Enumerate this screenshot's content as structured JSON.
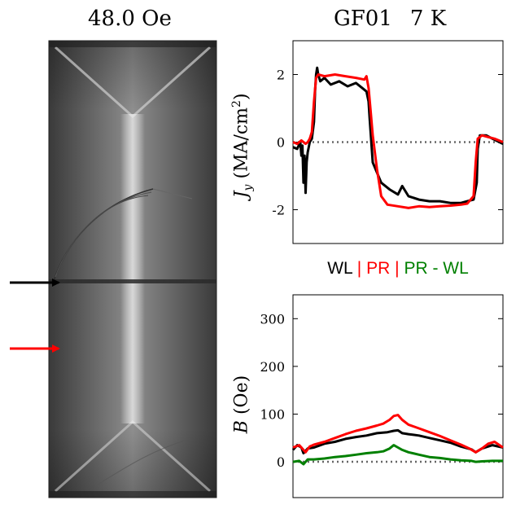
{
  "image_panel": {
    "title": "48.0 Oe",
    "description_icons": [
      "arrow-right-icon",
      "arrow-right-icon"
    ],
    "arrow_colors": [
      "#000000",
      "#ff0000"
    ]
  },
  "header": {
    "sample": "GF01",
    "temperature": "7 K"
  },
  "legend": {
    "wl": "WL",
    "sep": "|",
    "pr": "PR",
    "diff": "PR - WL",
    "colors": {
      "wl": "#000000",
      "pr": "#ff0000",
      "diff": "#008000"
    }
  },
  "chart_data": [
    {
      "type": "line",
      "title": "",
      "ylabel_symbol": "J",
      "ylabel_sub": "y",
      "ylabel_unit": "(MA/cm",
      "ylabel_sup": "2",
      "ylabel_close": ")",
      "xlabel": "",
      "xlim": [
        0,
        1
      ],
      "ylim": [
        -3,
        3
      ],
      "yticks": [
        2,
        0,
        -2
      ],
      "ytick_labels": [
        "2",
        "0",
        "-2"
      ],
      "reference_line": 0,
      "series": [
        {
          "name": "WL",
          "color": "#000000",
          "x": [
            0.0,
            0.02,
            0.035,
            0.04,
            0.045,
            0.05,
            0.055,
            0.06,
            0.065,
            0.07,
            0.08,
            0.09,
            0.1,
            0.105,
            0.11,
            0.115,
            0.12,
            0.13,
            0.15,
            0.18,
            0.22,
            0.26,
            0.3,
            0.33,
            0.35,
            0.36,
            0.365,
            0.38,
            0.42,
            0.46,
            0.5,
            0.52,
            0.55,
            0.6,
            0.65,
            0.7,
            0.75,
            0.8,
            0.83,
            0.86,
            0.875,
            0.88,
            0.89,
            0.92,
            0.95,
            1.0
          ],
          "y": [
            -0.15,
            -0.2,
            0.0,
            -0.4,
            -0.1,
            -1.2,
            -0.4,
            -1.5,
            -0.6,
            -0.3,
            0.0,
            0.1,
            0.6,
            1.5,
            2.0,
            2.2,
            2.0,
            1.8,
            1.9,
            1.7,
            1.8,
            1.65,
            1.75,
            1.6,
            1.5,
            1.2,
            0.7,
            -0.6,
            -1.2,
            -1.4,
            -1.55,
            -1.3,
            -1.6,
            -1.7,
            -1.75,
            -1.75,
            -1.8,
            -1.8,
            -1.75,
            -1.7,
            -1.2,
            -0.2,
            0.2,
            0.2,
            0.1,
            -0.05
          ]
        },
        {
          "name": "PR",
          "color": "#ff0000",
          "x": [
            0.0,
            0.02,
            0.04,
            0.06,
            0.07,
            0.08,
            0.09,
            0.1,
            0.11,
            0.12,
            0.15,
            0.2,
            0.25,
            0.3,
            0.34,
            0.35,
            0.36,
            0.37,
            0.38,
            0.4,
            0.42,
            0.45,
            0.5,
            0.55,
            0.6,
            0.65,
            0.7,
            0.75,
            0.8,
            0.83,
            0.86,
            0.87,
            0.88,
            0.9,
            0.93,
            0.96,
            1.0
          ],
          "y": [
            0.0,
            -0.05,
            0.05,
            -0.05,
            0.0,
            0.1,
            0.3,
            1.2,
            1.9,
            2.0,
            1.95,
            2.0,
            1.95,
            1.9,
            1.85,
            1.95,
            1.6,
            0.9,
            0.2,
            -0.8,
            -1.6,
            -1.85,
            -1.9,
            -1.95,
            -1.9,
            -1.92,
            -1.9,
            -1.88,
            -1.85,
            -1.82,
            -1.6,
            -0.6,
            0.1,
            0.2,
            0.15,
            0.1,
            0.0
          ]
        }
      ]
    },
    {
      "type": "line",
      "title": "",
      "ylabel_symbol": "B",
      "ylabel_unit": "(Oe)",
      "xlabel": "",
      "xlim": [
        0,
        1
      ],
      "ylim": [
        -75,
        350
      ],
      "yticks": [
        300,
        200,
        100,
        0
      ],
      "ytick_labels": [
        "300",
        "200",
        "100",
        "0"
      ],
      "reference_line": 0,
      "series": [
        {
          "name": "WL",
          "color": "#000000",
          "x": [
            0.0,
            0.02,
            0.04,
            0.05,
            0.07,
            0.1,
            0.15,
            0.2,
            0.25,
            0.3,
            0.35,
            0.4,
            0.45,
            0.48,
            0.5,
            0.52,
            0.55,
            0.6,
            0.65,
            0.7,
            0.75,
            0.8,
            0.85,
            0.87,
            0.9,
            0.95,
            1.0
          ],
          "y": [
            25,
            35,
            30,
            18,
            28,
            30,
            38,
            42,
            48,
            52,
            55,
            60,
            62,
            65,
            66,
            60,
            58,
            55,
            50,
            45,
            40,
            32,
            26,
            20,
            28,
            35,
            30
          ]
        },
        {
          "name": "PR",
          "color": "#ff0000",
          "x": [
            0.0,
            0.03,
            0.06,
            0.08,
            0.1,
            0.15,
            0.2,
            0.25,
            0.3,
            0.35,
            0.4,
            0.43,
            0.46,
            0.48,
            0.5,
            0.52,
            0.55,
            0.6,
            0.65,
            0.7,
            0.75,
            0.8,
            0.84,
            0.87,
            0.9,
            0.93,
            0.96,
            1.0
          ],
          "y": [
            30,
            35,
            20,
            32,
            36,
            42,
            50,
            58,
            65,
            70,
            76,
            80,
            88,
            96,
            98,
            88,
            78,
            70,
            62,
            54,
            45,
            36,
            28,
            20,
            28,
            38,
            42,
            30
          ]
        },
        {
          "name": "PR - WL",
          "color": "#008000",
          "x": [
            0.0,
            0.03,
            0.05,
            0.07,
            0.1,
            0.15,
            0.2,
            0.25,
            0.3,
            0.35,
            0.4,
            0.43,
            0.46,
            0.48,
            0.5,
            0.52,
            0.55,
            0.6,
            0.65,
            0.7,
            0.75,
            0.8,
            0.85,
            0.87,
            0.9,
            0.95,
            1.0
          ],
          "y": [
            0,
            2,
            -5,
            5,
            5,
            7,
            10,
            12,
            15,
            18,
            20,
            22,
            28,
            35,
            30,
            25,
            20,
            15,
            10,
            8,
            5,
            3,
            2,
            0,
            1,
            2,
            2
          ]
        }
      ]
    }
  ]
}
